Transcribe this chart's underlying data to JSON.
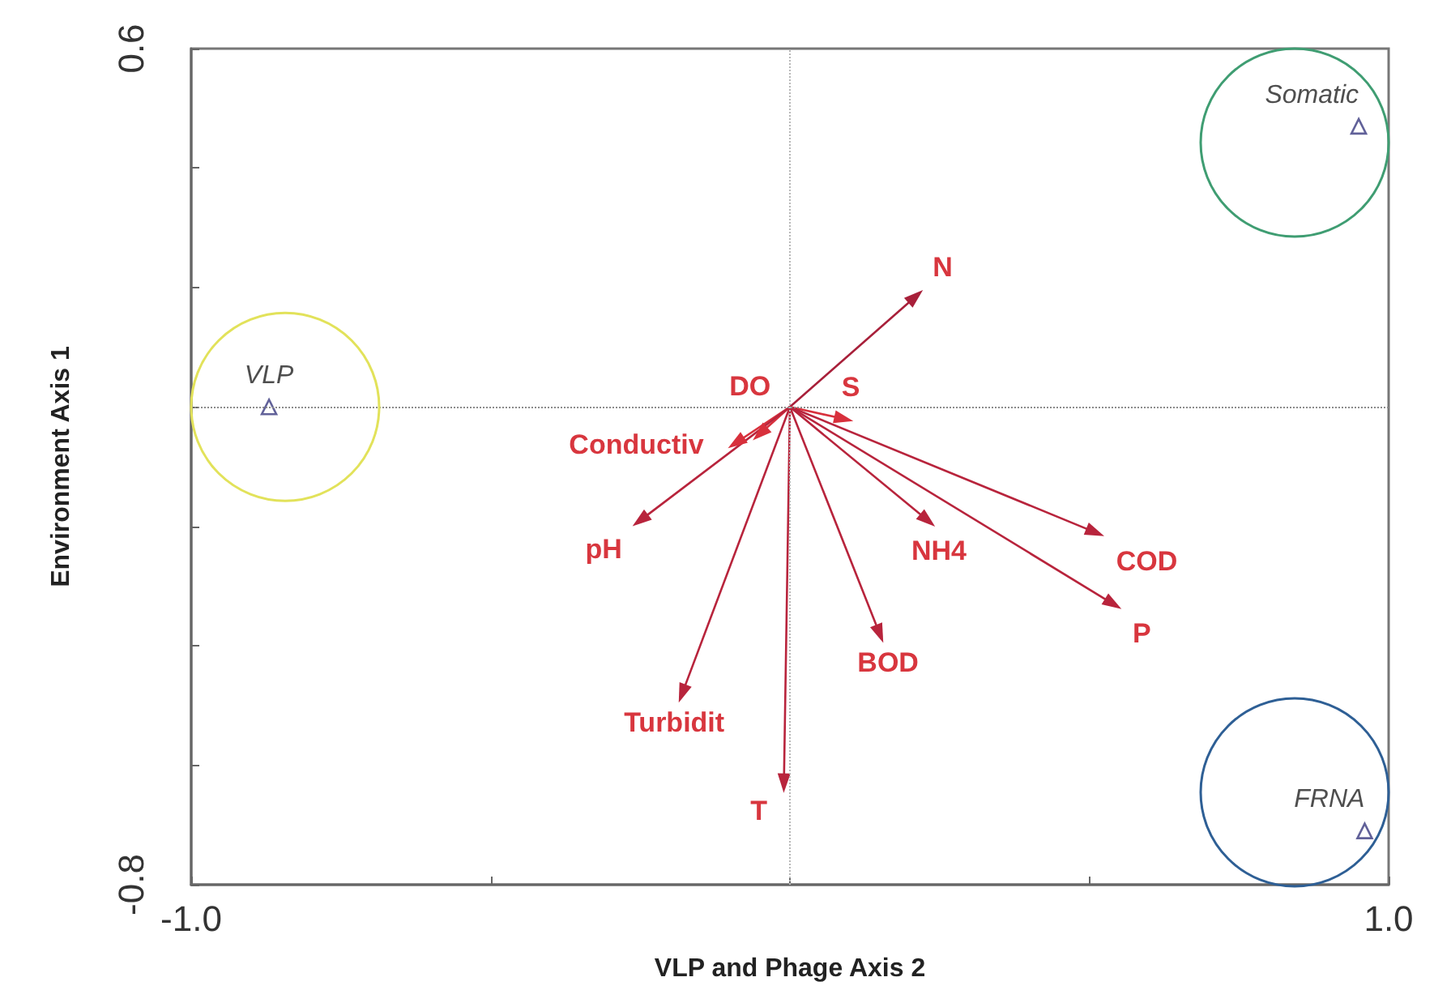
{
  "chart_data": {
    "type": "scatter",
    "xlabel": "VLP and Phage Axis 2",
    "ylabel": "Environment Axis 1",
    "xlim": [
      -1,
      1
    ],
    "ylim": [
      -0.8,
      0.6
    ],
    "xticks": [
      {
        "value": -1,
        "label": "-1.0"
      },
      {
        "value": -0.5,
        "label": null
      },
      {
        "value": 0,
        "label": null
      },
      {
        "value": 0.5,
        "label": null
      },
      {
        "value": 1,
        "label": "1.0"
      }
    ],
    "yticks": [
      -0.8,
      {
        "value": -0.6,
        "label": null
      },
      {
        "value": -0.4,
        "label": null
      },
      {
        "value": -0.2,
        "label": null
      },
      {
        "value": 0,
        "label": null
      },
      {
        "value": 0.2,
        "label": null
      },
      {
        "value": 0.4,
        "label": null
      },
      0.6
    ],
    "grid": false,
    "marker": "triangle",
    "ref_lines": [
      {
        "axis": "x",
        "value": 0,
        "color": "#b8b8b8",
        "line_style": "dotted"
      },
      {
        "axis": "y",
        "value": 0,
        "color": "#8c8c8c",
        "line_style": "dotted"
      }
    ],
    "series": [
      {
        "name": "VLP",
        "color": "#3a3a80",
        "x": [
          -0.87
        ],
        "values": [
          0.0
        ]
      },
      {
        "name": "Somatic",
        "color": "#3a3a80",
        "x": [
          0.95
        ],
        "values": [
          0.47
        ]
      },
      {
        "name": "FRNA",
        "color": "#3a3a80",
        "x": [
          0.96
        ],
        "values": [
          -0.71
        ]
      },
      {
        "type": "line",
        "color": "#a8203a",
        "x": [
          0,
          0.21
        ],
        "values": [
          0,
          0.185
        ]
      },
      {
        "type": "line",
        "color": "#d8303c",
        "x": [
          0,
          -0.09
        ],
        "values": [
          0,
          -0.06
        ]
      },
      {
        "type": "line",
        "color": "#d8303c",
        "x": [
          0,
          -0.05
        ],
        "values": [
          0,
          -0.045
        ]
      },
      {
        "type": "line",
        "color": "#b8243c",
        "x": [
          0,
          -0.25
        ],
        "values": [
          0,
          -0.19
        ]
      },
      {
        "type": "line",
        "color": "#b8243c",
        "x": [
          0,
          -0.18
        ],
        "values": [
          0,
          -0.48
        ]
      },
      {
        "type": "line",
        "color": "#b8243c",
        "x": [
          0,
          -0.01
        ],
        "values": [
          0,
          -0.63
        ]
      },
      {
        "type": "line",
        "color": "#b8243c",
        "x": [
          0,
          0.15
        ],
        "values": [
          0,
          -0.38
        ]
      },
      {
        "type": "line",
        "color": "#b8243c",
        "x": [
          0,
          0.23
        ],
        "values": [
          0,
          -0.19
        ]
      },
      {
        "type": "line",
        "color": "#d8303c",
        "x": [
          0,
          0.09
        ],
        "values": [
          0,
          -0.02
        ]
      },
      {
        "type": "line",
        "color": "#b8243c",
        "x": [
          0,
          0.51
        ],
        "values": [
          0,
          -0.21
        ]
      },
      {
        "type": "line",
        "color": "#b8243c",
        "x": [
          0,
          0.54
        ],
        "values": [
          0,
          -0.33
        ]
      }
    ],
    "annotations": [
      {
        "text": "N",
        "x": 0.21,
        "y": 0.185
      },
      {
        "text": "Conductiv",
        "x": -0.09,
        "y": -0.06
      },
      {
        "text": "DO",
        "x": -0.05,
        "y": -0.045
      },
      {
        "text": "pH",
        "x": -0.25,
        "y": -0.19
      },
      {
        "text": "Turbidit",
        "x": -0.18,
        "y": -0.48
      },
      {
        "text": "T",
        "x": -0.01,
        "y": -0.63
      },
      {
        "text": "BOD",
        "x": 0.15,
        "y": -0.38
      },
      {
        "text": "NH4",
        "x": 0.23,
        "y": -0.19
      },
      {
        "text": "S",
        "x": 0.09,
        "y": -0.02
      },
      {
        "text": "COD",
        "x": 0.51,
        "y": -0.21
      },
      {
        "text": "P",
        "x": 0.54,
        "y": -0.33
      }
    ]
  }
}
